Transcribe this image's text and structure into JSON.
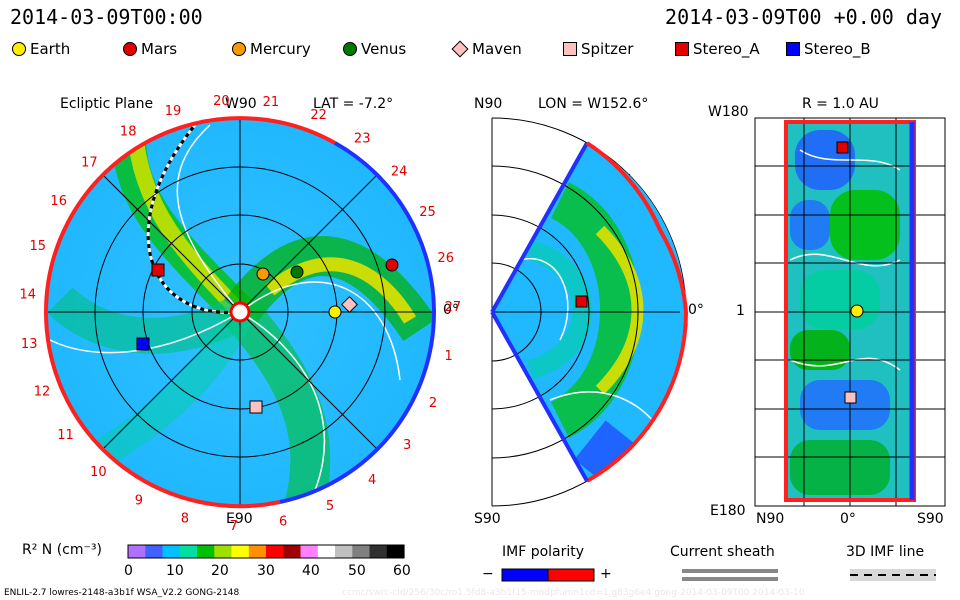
{
  "header": {
    "datetime": "2014-03-09T00:00",
    "elapsed": "2014-03-09T00 +0.00 day"
  },
  "legend": [
    {
      "label": "Earth",
      "color": "#ffee00",
      "shape": "circle"
    },
    {
      "label": "Mars",
      "color": "#e00000",
      "shape": "circle"
    },
    {
      "label": "Mercury",
      "color": "#ff9900",
      "shape": "circle"
    },
    {
      "label": "Venus",
      "color": "#007700",
      "shape": "circle"
    },
    {
      "label": "Maven",
      "color": "#ffc0c0",
      "shape": "diamond"
    },
    {
      "label": "Spitzer",
      "color": "#ffc0c0",
      "shape": "square"
    },
    {
      "label": "Stereo_A",
      "color": "#e00000",
      "shape": "square"
    },
    {
      "label": "Stereo_B",
      "color": "#0000ff",
      "shape": "square"
    }
  ],
  "panel1": {
    "title": "Ecliptic Plane",
    "top_label": "W90",
    "lat": "LAT = -7.2°",
    "bottom_label": "E90",
    "right_label": "0°",
    "sector_numbers": [
      "20",
      "21",
      "22",
      "23",
      "24",
      "25",
      "26",
      "27",
      "1",
      "2",
      "3",
      "4",
      "5",
      "6",
      "7",
      "8",
      "9",
      "10",
      "11",
      "12",
      "13",
      "14",
      "15",
      "16",
      "17",
      "18",
      "19"
    ]
  },
  "panel2": {
    "top_label": "N90",
    "lon": "LON = W152.6°",
    "bottom_label": "S90",
    "right_label": "0°"
  },
  "panel3": {
    "r": "R = 1.0 AU",
    "top_label": "W180",
    "middle_label": "1",
    "bottom_label": "E180",
    "x_labels": [
      "N90",
      "0°",
      "S90"
    ]
  },
  "colorbar": {
    "label": "R² N (cm⁻³)",
    "ticks": [
      "0",
      "10",
      "20",
      "30",
      "40",
      "50",
      "60"
    ],
    "colors": [
      "#b070ff",
      "#4060ff",
      "#00c0ff",
      "#00e0a0",
      "#00c000",
      "#a0e000",
      "#ffff00",
      "#ff9000",
      "#ff0000",
      "#a00000",
      "#ff80ff",
      "#ffffff",
      "#c0c0c0",
      "#808080",
      "#303030",
      "#000000"
    ]
  },
  "imf": {
    "title": "IMF polarity",
    "minus": "−",
    "plus": "+",
    "neg_color": "#0000ff",
    "pos_color": "#ff0000"
  },
  "current_sheath": {
    "title": "Current sheath"
  },
  "imf3d": {
    "title": "3D IMF line"
  },
  "footer": {
    "left": "ENLIL-2.7 lowres-2148-a3b1f WSA_V2.2 GONG-2148",
    "right": "ccmc/swrc-cld/256/30c/ro1.5fd8-a3b1f15-modpfumn1cd=1.g83g6e4 gong-2014-03-09T00    2014-03-10"
  }
}
